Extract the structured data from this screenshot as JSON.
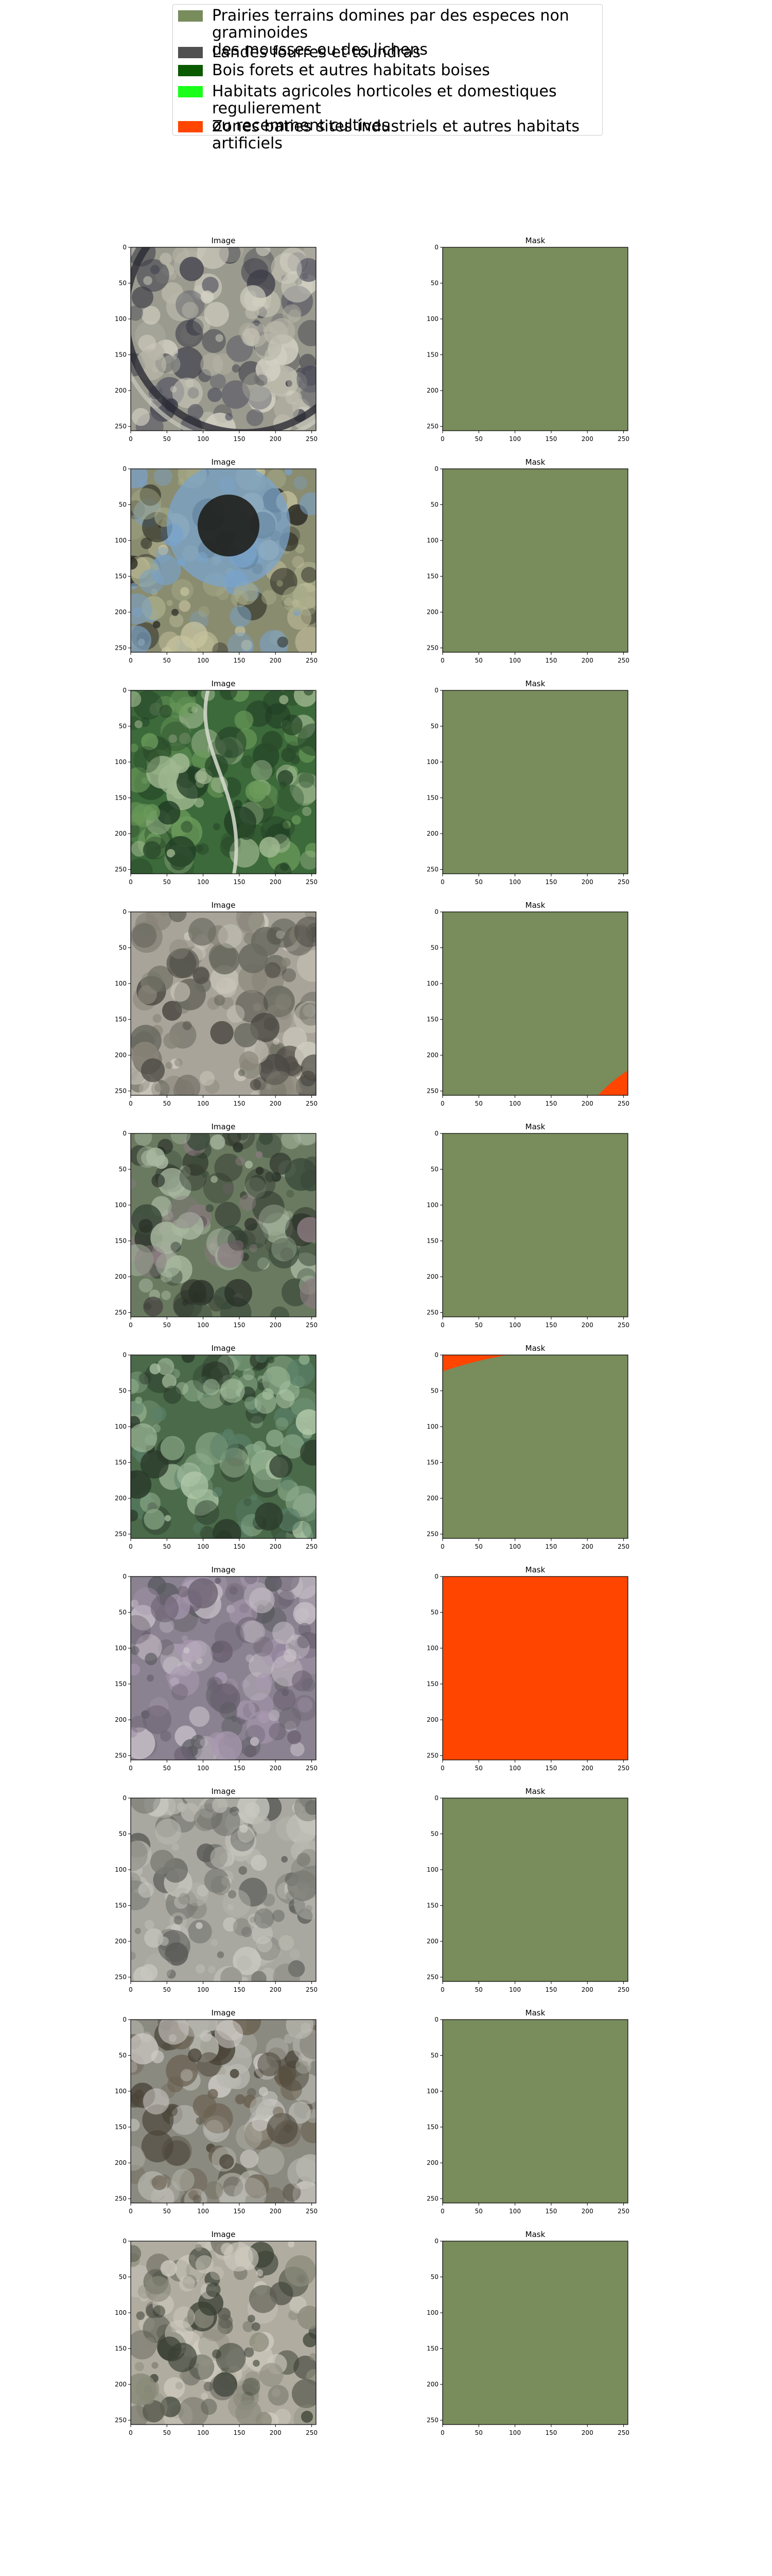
{
  "legend": {
    "items": [
      {
        "label": "Prairies terrains domines par des especes non graminoides\n des mousses ou des lichens",
        "color": "#788c5c"
      },
      {
        "label": "Landes fourres et toundras",
        "color": "#505050"
      },
      {
        "label": "Bois forets et autres habitats boises",
        "color": "#0a5a00"
      },
      {
        "label": "Habitats agricoles horticoles et domestiques regulierement\n ou recemment cultives",
        "color": "#1aff1a"
      },
      {
        "label": "Zones baties sites industriels et autres habitats artificiels",
        "color": "#ff4500"
      }
    ]
  },
  "axes": {
    "x_ticks": [
      "0",
      "50",
      "100",
      "150",
      "200",
      "250"
    ],
    "y_ticks": [
      "0",
      "50",
      "100",
      "150",
      "200",
      "250"
    ],
    "x_range": [
      0,
      256
    ],
    "y_range": [
      0,
      256
    ]
  },
  "rows": [
    {
      "image_title": "Image",
      "mask_title": "Mask",
      "image_scene": "round-structure-top-view",
      "mask": {
        "base": "#788c5c",
        "overlay": null
      }
    },
    {
      "image_title": "Image",
      "mask_title": "Mask",
      "image_scene": "fountain-circle-with-trees",
      "mask": {
        "base": "#788c5c",
        "overlay": null
      }
    },
    {
      "image_title": "Image",
      "mask_title": "Mask",
      "image_scene": "forest-with-path",
      "mask": {
        "base": "#788c5c",
        "overlay": null
      }
    },
    {
      "image_title": "Image",
      "mask_title": "Mask",
      "image_scene": "dry-scrubland",
      "mask": {
        "base": "#788c5c",
        "overlay": {
          "color": "#ff4500",
          "shape": "bottom-right-corner"
        }
      }
    },
    {
      "image_title": "Image",
      "mask_title": "Mask",
      "image_scene": "dense-shrub-canopy",
      "mask": {
        "base": "#788c5c",
        "overlay": null
      }
    },
    {
      "image_title": "Image",
      "mask_title": "Mask",
      "image_scene": "tree-canopy-cluster",
      "mask": {
        "base": "#788c5c",
        "overlay": {
          "color": "#ff4500",
          "shape": "top-left-band"
        }
      }
    },
    {
      "image_title": "Image",
      "mask_title": "Mask",
      "image_scene": "purple-grey-field",
      "mask": {
        "base": "#ff4500",
        "overlay": null
      }
    },
    {
      "image_title": "Image",
      "mask_title": "Mask",
      "image_scene": "pale-field-grey",
      "mask": {
        "base": "#788c5c",
        "overlay": null
      }
    },
    {
      "image_title": "Image",
      "mask_title": "Mask",
      "image_scene": "speckled-mixed-ground",
      "mask": {
        "base": "#788c5c",
        "overlay": null
      }
    },
    {
      "image_title": "Image",
      "mask_title": "Mask",
      "image_scene": "scattered-trees-pale-ground",
      "mask": {
        "base": "#788c5c",
        "overlay": null
      }
    }
  ]
}
